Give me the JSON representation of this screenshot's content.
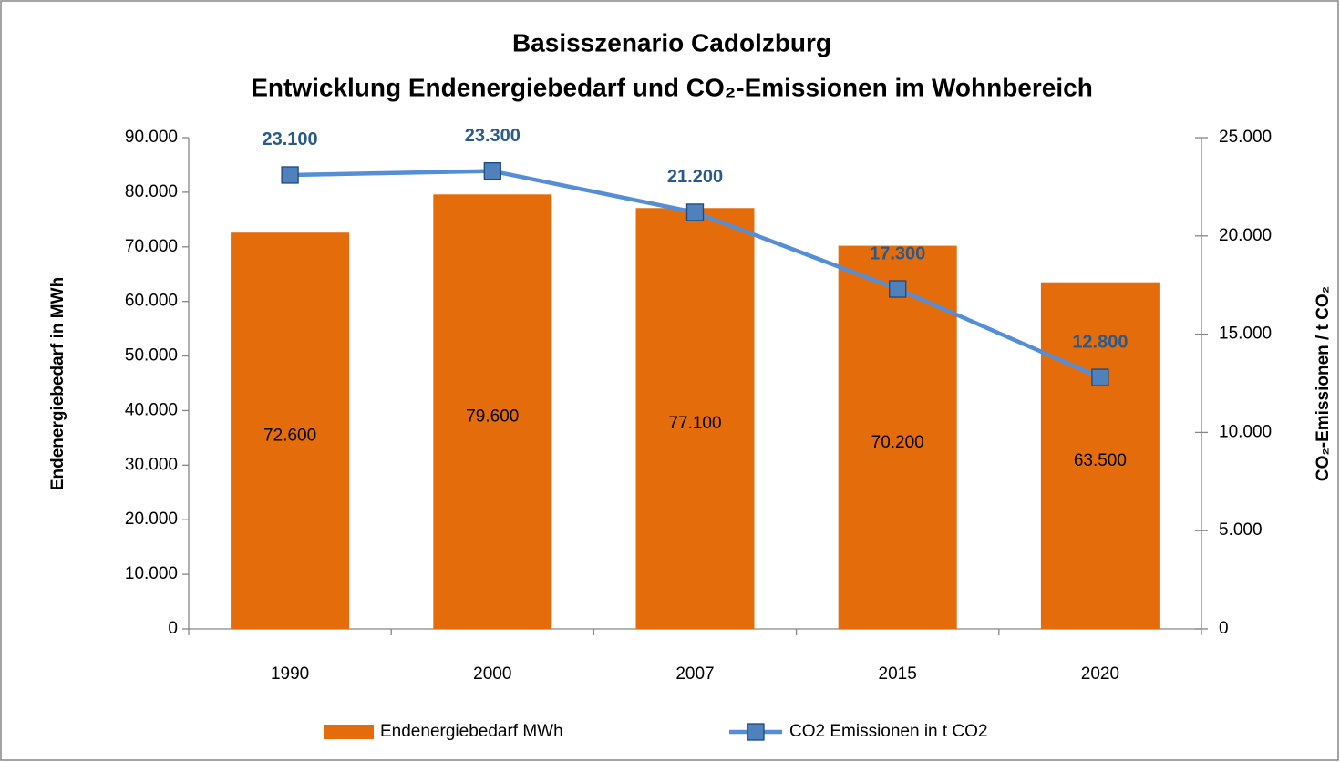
{
  "chart_data": {
    "type": "bar",
    "title": [
      "Basisszenario Cadolzburg",
      "Entwicklung Endenergiebedarf und CO₂-Emissionen im Wohnbereich"
    ],
    "ylabel": "Endenergiebedarf in MWh",
    "y2label": "CO₂-Emissionen / t CO₂",
    "categories": [
      "1990",
      "2000",
      "2007",
      "2015",
      "2020"
    ],
    "series": [
      {
        "name": "Endenergiebedarf MWh",
        "type": "bar",
        "axis": "y",
        "color": "#e46c0a",
        "values": [
          72600,
          79600,
          77100,
          70200,
          63500
        ],
        "value_labels": [
          "72.600",
          "79.600",
          "77.100",
          "70.200",
          "63.500"
        ]
      },
      {
        "name": "CO2 Emissionen in t CO2",
        "type": "line",
        "axis": "y2",
        "color": "#558ed5",
        "marker_color": "#4f81bd",
        "values": [
          23100,
          23300,
          21200,
          17300,
          12800
        ],
        "value_labels": [
          "23.100",
          "23.300",
          "21.200",
          "17.300",
          "12.800"
        ]
      }
    ],
    "ylim": [
      0,
      90000
    ],
    "yticks": [
      0,
      {
        "value": 10000,
        "label": "10.000"
      },
      {
        "value": 20000,
        "label": "20.000"
      },
      {
        "value": 30000,
        "label": "30.000"
      },
      {
        "value": 40000,
        "label": "40.000"
      },
      {
        "value": 50000,
        "label": "50.000"
      },
      {
        "value": 60000,
        "label": "60.000"
      },
      {
        "value": 70000,
        "label": "70.000"
      },
      {
        "value": 80000,
        "label": "80.000"
      },
      {
        "value": 90000,
        "label": "90.000"
      }
    ],
    "y2lim": [
      0,
      25000
    ],
    "y2ticks": [
      0,
      {
        "value": 5000,
        "label": "5.000"
      },
      {
        "value": 10000,
        "label": "10.000"
      },
      {
        "value": 15000,
        "label": "15.000"
      },
      {
        "value": 20000,
        "label": "20.000"
      },
      {
        "value": 25000,
        "label": "25.000"
      }
    ],
    "legend": "bottom",
    "grid": false
  }
}
